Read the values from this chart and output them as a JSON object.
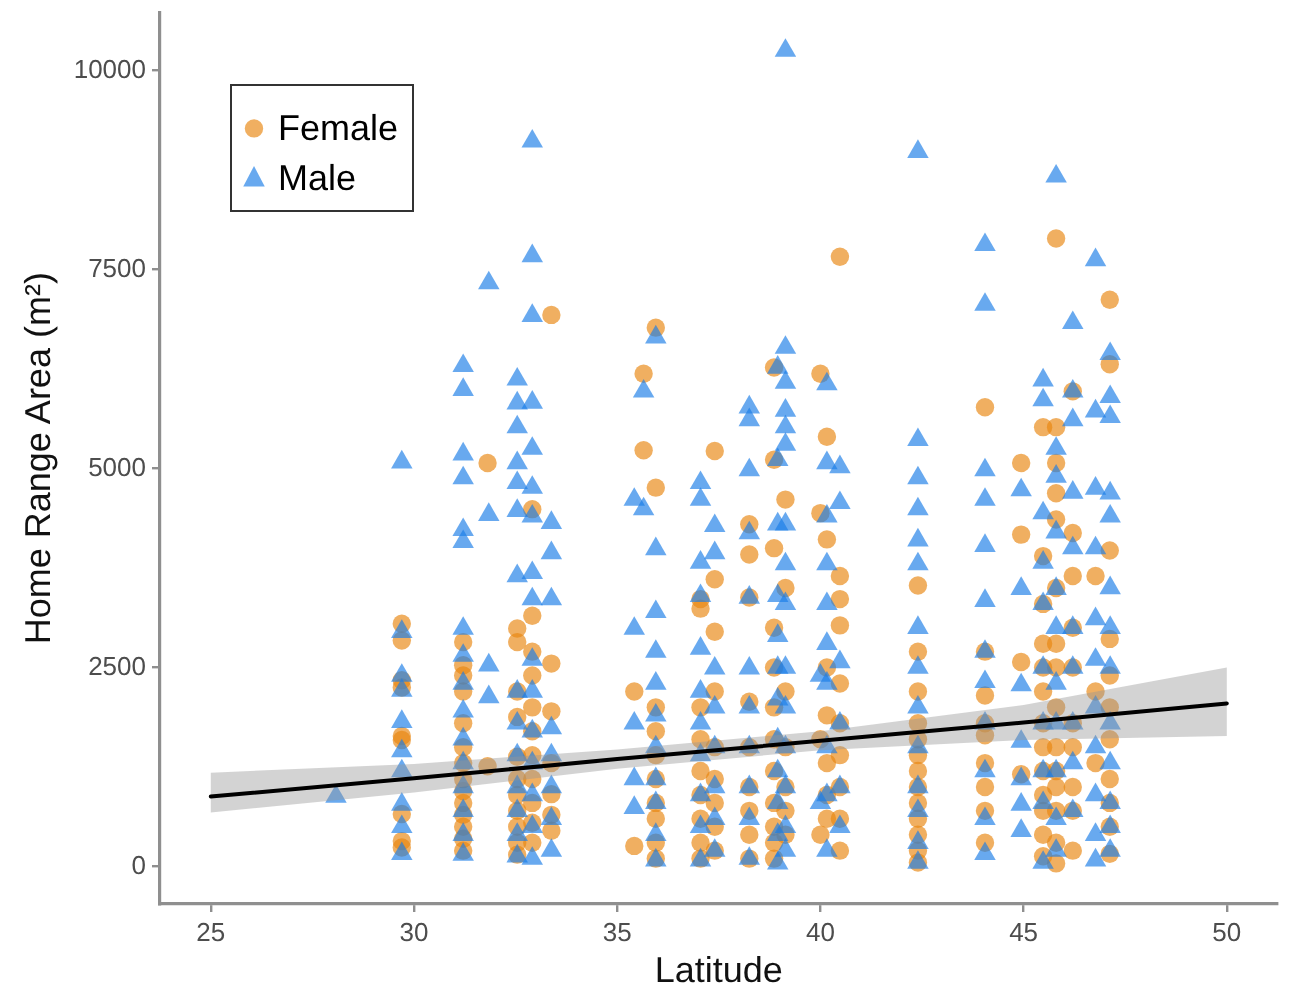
{
  "chart_data": {
    "type": "scatter",
    "xlabel": "Latitude",
    "ylabel": "Home Range Area (m²)",
    "xlim": [
      23.75,
      51.25
    ],
    "xticks": [
      25,
      30,
      35,
      40,
      45,
      50
    ],
    "ylim": [
      -470,
      10730
    ],
    "yticks": [
      0,
      2500,
      5000,
      7500,
      10000
    ],
    "legend": "top left",
    "series": [
      {
        "name": "Female",
        "color": "#e8850f",
        "marker": "circle",
        "x": [
          29.7,
          29.7,
          29.7,
          29.7,
          29.7,
          29.7,
          29.7,
          29.7,
          29.7,
          31.21,
          31.21,
          31.21,
          31.21,
          31.21,
          31.21,
          31.21,
          31.21,
          31.21,
          31.81,
          31.81,
          32.54,
          32.54,
          32.54,
          32.54,
          32.54,
          32.54,
          32.54,
          32.91,
          32.91,
          32.91,
          32.91,
          32.91,
          32.91,
          32.91,
          33.38,
          33.38,
          33.38,
          33.38,
          33.38,
          35.42,
          35.42,
          35.65,
          35.65,
          35.95,
          35.95,
          35.95,
          35.95,
          35.95,
          35.95,
          35.95,
          37.05,
          37.05,
          37.05,
          37.05,
          37.05,
          37.05,
          37.4,
          37.4,
          37.4,
          37.4,
          37.4,
          37.4,
          37.4,
          38.25,
          38.25,
          38.25,
          38.25,
          38.25,
          38.25,
          38.25,
          38.86,
          38.86,
          38.86,
          38.86,
          38.86,
          38.86,
          38.86,
          38.86,
          39.14,
          39.14,
          39.14,
          39.14,
          40,
          40,
          40,
          40,
          40.16,
          40.16,
          40.16,
          40.16,
          40.48,
          40.48,
          40.48,
          40.48,
          40.48,
          40.48,
          40.48,
          42.4,
          42.4,
          42.4,
          42.4,
          42.4,
          42.4,
          42.4,
          42.4,
          44.05,
          44.05,
          44.05,
          44.05,
          44.05,
          44.05,
          44.05,
          44.94,
          44.94,
          44.94,
          44.94,
          45.48,
          45.48,
          45.48,
          45.48,
          45.48,
          45.48,
          45.48,
          45.48,
          45.8,
          45.8,
          45.8,
          45.8,
          45.8,
          45.8,
          45.8,
          45.8,
          45.8,
          46.21,
          46.21,
          46.21,
          46.21,
          46.21,
          46.21,
          46.21,
          46.77,
          46.77,
          46.77,
          47.12,
          47.12,
          47.12,
          47.12,
          47.12,
          47.12,
          47.12,
          47.12,
          31.21,
          31.21,
          31.21,
          31.21,
          31.21,
          32.54,
          32.54,
          32.54,
          32.54,
          32.91,
          32.91,
          32.91,
          32.91,
          33.38,
          33.38,
          35.95,
          35.95,
          35.95,
          37.05,
          37.05,
          37.05,
          37.4,
          37.4,
          38.25,
          38.25,
          38.86,
          38.86,
          38.86,
          38.86,
          39.14,
          39.14,
          39.14,
          40.16,
          40.16,
          40.16,
          40.48,
          40.48,
          40.48,
          42.4,
          42.4,
          42.4,
          42.4,
          42.4,
          44.05,
          44.05,
          45.48,
          45.48,
          45.48,
          45.48,
          45.48,
          45.8,
          45.8,
          45.8,
          45.8,
          45.8,
          45.8,
          46.21,
          46.21,
          46.21,
          47.12,
          47.12,
          47.12
        ],
        "values": [
          3050,
          2840,
          2340,
          2250,
          1640,
          1590,
          660,
          320,
          240,
          2820,
          2530,
          2200,
          1800,
          1500,
          1100,
          800,
          500,
          200,
          5070,
          1260,
          2990,
          2820,
          1880,
          1380,
          900,
          500,
          150,
          4490,
          3150,
          2700,
          2000,
          1400,
          800,
          300,
          6930,
          2550,
          1950,
          910,
          450,
          2200,
          260,
          6190,
          5230,
          6770,
          4760,
          2000,
          1400,
          800,
          300,
          100,
          3360,
          3240,
          2000,
          1200,
          600,
          100,
          5220,
          3610,
          2950,
          2200,
          1500,
          800,
          200,
          4300,
          3920,
          3380,
          2070,
          1000,
          400,
          100,
          6270,
          5110,
          4000,
          3000,
          2000,
          1200,
          500,
          100,
          4610,
          3500,
          1500,
          700,
          6190,
          4440,
          1600,
          400,
          5400,
          4110,
          2500,
          900,
          7660,
          3650,
          3360,
          3030,
          1800,
          1000,
          200,
          3530,
          2200,
          1800,
          1400,
          1000,
          600,
          200,
          50,
          5770,
          2700,
          2150,
          1800,
          1650,
          1000,
          300,
          5070,
          4170,
          2570,
          1160,
          5520,
          3900,
          2800,
          2200,
          1500,
          900,
          400,
          130,
          7890,
          5520,
          5070,
          4690,
          4360,
          2000,
          1000,
          300,
          40,
          5970,
          4190,
          3650,
          2500,
          1500,
          700,
          200,
          3650,
          2200,
          1300,
          7120,
          6310,
          3970,
          2860,
          2000,
          1100,
          500,
          160,
          2400,
          1300,
          950,
          650,
          350,
          2200,
          1100,
          700,
          300,
          2400,
          1700,
          1100,
          550,
          1300,
          650,
          1700,
          1100,
          600,
          1600,
          900,
          300,
          1100,
          500,
          1500,
          700,
          2500,
          1600,
          800,
          300,
          2200,
          1000,
          400,
          1900,
          1300,
          600,
          2300,
          1400,
          600,
          2700,
          1600,
          1200,
          800,
          400,
          1300,
          700,
          3300,
          2500,
          1800,
          1200,
          700,
          3500,
          2800,
          2500,
          1500,
          1200,
          700,
          3000,
          1800,
          1000,
          2400,
          1600,
          800
        ]
      },
      {
        "name": "Male",
        "color": "#1a7ce6",
        "marker": "triangle",
        "x": [
          28.08,
          29.7,
          29.7,
          29.7,
          29.7,
          29.7,
          29.7,
          29.7,
          29.7,
          31.21,
          31.21,
          31.21,
          31.21,
          31.21,
          31.21,
          31.21,
          31.21,
          31.21,
          31.21,
          31.21,
          31.84,
          31.84,
          31.84,
          31.84,
          32.54,
          32.54,
          32.54,
          32.54,
          32.54,
          32.54,
          32.54,
          32.54,
          32.54,
          32.54,
          32.54,
          32.91,
          32.91,
          32.91,
          32.91,
          32.91,
          32.91,
          32.91,
          32.91,
          32.91,
          32.91,
          32.91,
          32.91,
          32.91,
          33.38,
          33.38,
          33.38,
          33.38,
          33.38,
          33.38,
          35.42,
          35.42,
          35.42,
          35.65,
          35.65,
          35.95,
          35.95,
          35.95,
          35.95,
          35.95,
          35.95,
          35.95,
          37.05,
          37.05,
          37.05,
          37.05,
          37.05,
          37.05,
          37.05,
          37.05,
          37.4,
          37.4,
          37.4,
          37.4,
          37.4,
          38.25,
          38.25,
          38.25,
          38.25,
          38.25,
          38.25,
          38.25,
          38.25,
          38.25,
          38.95,
          38.95,
          38.95,
          38.95,
          38.95,
          38.95,
          38.95,
          38.95,
          39.14,
          39.14,
          39.14,
          39.14,
          39.14,
          39.14,
          39.14,
          39.14,
          39.14,
          40,
          40,
          40.16,
          40.16,
          40.16,
          40.16,
          40.16,
          40.16,
          40.48,
          40.48,
          40.48,
          40.48,
          42.4,
          42.4,
          42.4,
          42.4,
          42.4,
          42.4,
          42.4,
          42.4,
          42.4,
          42.4,
          44.05,
          44.05,
          44.05,
          44.05,
          44.05,
          44.05,
          44.05,
          44.05,
          44.05,
          44.94,
          44.94,
          44.94,
          44.94,
          44.94,
          44.94,
          45.48,
          45.48,
          45.48,
          45.48,
          45.48,
          45.48,
          45.48,
          45.8,
          45.8,
          45.8,
          45.8,
          45.8,
          45.8,
          46.21,
          46.21,
          46.21,
          46.21,
          46.21,
          46.21,
          46.21,
          46.77,
          46.77,
          46.77,
          46.77,
          46.77,
          46.77,
          46.77,
          47.13,
          47.13,
          47.13,
          47.13,
          47.13,
          47.13,
          47.13,
          47.13,
          47.13,
          29.7,
          29.7,
          31.21,
          31.21,
          31.21,
          31.21,
          31.21,
          32.54,
          32.54,
          32.54,
          32.91,
          32.91,
          32.91,
          33.38,
          33.38,
          35.42,
          35.42,
          35.95,
          35.95,
          35.95,
          35.95,
          37.05,
          37.05,
          37.05,
          37.4,
          37.4,
          37.4,
          38.25,
          38.25,
          38.95,
          38.95,
          38.95,
          38.95,
          39.14,
          39.14,
          39.14,
          39.14,
          39.14,
          39.14,
          40.16,
          40.16,
          40.16,
          40.16,
          40.48,
          40.48,
          42.4,
          42.4,
          42.4,
          42.4,
          44.05,
          44.05,
          44.05,
          44.94,
          45.48,
          45.48,
          45.48,
          45.8,
          45.8,
          45.8,
          45.8,
          45.8,
          46.21,
          46.21,
          46.21,
          46.77,
          46.77,
          46.77,
          46.77,
          47.13,
          47.13,
          47.13,
          47.13
        ],
        "values": [
          880,
          5080,
          2950,
          2400,
          2210,
          1820,
          1450,
          780,
          160,
          6290,
          5990,
          5180,
          4880,
          4230,
          4080,
          2990,
          2300,
          1600,
          1000,
          400,
          7330,
          4420,
          2530,
          2130,
          6120,
          5820,
          5520,
          5070,
          4820,
          4470,
          3650,
          2200,
          1400,
          700,
          130,
          9110,
          7670,
          6920,
          5830,
          5250,
          4760,
          4400,
          3690,
          3360,
          2600,
          1700,
          900,
          100,
          4320,
          3940,
          3360,
          1740,
          1000,
          200,
          4610,
          2990,
          740,
          5970,
          4490,
          6650,
          3990,
          3200,
          2300,
          1500,
          800,
          80,
          4820,
          4610,
          3820,
          3400,
          2740,
          1800,
          900,
          80,
          4280,
          3940,
          2490,
          1500,
          600,
          5770,
          5610,
          4980,
          4190,
          3380,
          2490,
          1500,
          600,
          100,
          6270,
          5110,
          4300,
          3400,
          2500,
          1600,
          800,
          40,
          10250,
          6520,
          6080,
          5730,
          5520,
          5300,
          3800,
          2000,
          500,
          2400,
          800,
          6060,
          5070,
          3800,
          2800,
          1500,
          200,
          5020,
          4570,
          2570,
          1000,
          8980,
          5360,
          4880,
          4490,
          4100,
          3800,
          3000,
          2000,
          1000,
          50,
          7810,
          7060,
          4980,
          4610,
          4030,
          3340,
          2320,
          1200,
          160,
          4730,
          3490,
          2280,
          1570,
          780,
          450,
          6110,
          5860,
          4440,
          3820,
          2500,
          1200,
          50,
          8670,
          5250,
          4900,
          3490,
          1800,
          600,
          6830,
          5970,
          5610,
          4700,
          3000,
          1800,
          700,
          7620,
          5720,
          4750,
          3110,
          2000,
          900,
          80,
          6440,
          5900,
          5650,
          4690,
          4400,
          3500,
          2500,
          1300,
          200,
          1200,
          500,
          2650,
          1950,
          1300,
          700,
          150,
          1800,
          1000,
          400,
          2200,
          1300,
          500,
          1400,
          600,
          1800,
          1100,
          2700,
          1900,
          1100,
          400,
          2200,
          1400,
          500,
          2000,
          1000,
          200,
          2000,
          1000,
          2900,
          2100,
          1200,
          400,
          4300,
          3300,
          2500,
          1500,
          1000,
          200,
          4400,
          3300,
          2300,
          900,
          1800,
          500,
          2500,
          1500,
          700,
          300,
          2700,
          1800,
          600,
          1100,
          3300,
          1800,
          800,
          4200,
          3000,
          2300,
          1200,
          200,
          4000,
          2500,
          1300,
          4000,
          2600,
          1500,
          400,
          3000,
          1800,
          800,
          500
        ]
      },
      {
        "type": "line",
        "color": "#000000",
        "marker": "none",
        "x": [
          25,
          30,
          35,
          40,
          45,
          50
        ],
        "values": [
          880,
          1110,
          1350,
          1580,
          1810,
          2050
        ],
        "lower": [
          680,
          930,
          1230,
          1460,
          1590,
          1640
        ],
        "upper": [
          1180,
          1290,
          1470,
          1700,
          2030,
          2500
        ]
      }
    ]
  }
}
